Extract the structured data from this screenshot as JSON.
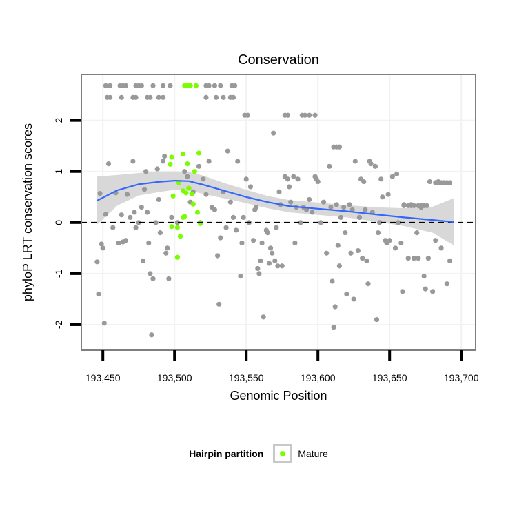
{
  "chart_data": {
    "type": "scatter",
    "title": "Conservation",
    "xlabel": "Genomic Position",
    "ylabel": "phyloP LRT conservation scores",
    "xlim": [
      193435,
      193710
    ],
    "ylim": [
      -2.5,
      2.9
    ],
    "xticks": [
      193450,
      193500,
      193550,
      193600,
      193650,
      193700
    ],
    "xtick_labels": [
      "193,450",
      "193,500",
      "193,550",
      "193,600",
      "193,650",
      "193,700"
    ],
    "yticks": [
      -2,
      -1,
      0,
      1,
      2
    ],
    "ytick_labels": [
      "-2",
      "-1",
      "0",
      "1",
      "2"
    ],
    "reference_line": {
      "y": 0,
      "style": "dashed"
    },
    "grid": true,
    "legend": {
      "position": "bottom",
      "title": "Hairpin partition",
      "entries": [
        {
          "name": "Mature",
          "color": "#7cfc00"
        }
      ]
    },
    "colors": {
      "other": "#999999",
      "mature": "#7cfc00",
      "smooth": "#3366ff",
      "band": "#d4d4d4",
      "panel_border": "#7f7f7f",
      "grid": "#f2f2f2"
    },
    "smooth": {
      "x": [
        193446,
        193460,
        193475,
        193490,
        193500,
        193510,
        193520,
        193535,
        193550,
        193565,
        193580,
        193600,
        193620,
        193640,
        193660,
        193680,
        193695
      ],
      "y": [
        0.43,
        0.63,
        0.75,
        0.8,
        0.82,
        0.81,
        0.74,
        0.62,
        0.5,
        0.4,
        0.32,
        0.27,
        0.22,
        0.16,
        0.1,
        0.05,
        0.01
      ],
      "lower": [
        -0.04,
        0.33,
        0.53,
        0.6,
        0.64,
        0.63,
        0.56,
        0.47,
        0.38,
        0.28,
        0.2,
        0.15,
        0.1,
        0.02,
        -0.07,
        -0.2,
        -0.45
      ],
      "upper": [
        0.9,
        0.93,
        0.97,
        1.0,
        1.0,
        0.99,
        0.92,
        0.77,
        0.64,
        0.52,
        0.44,
        0.39,
        0.34,
        0.3,
        0.28,
        0.31,
        0.48
      ]
    },
    "series": [
      {
        "name": "",
        "points": [
          [
            193446,
            -0.77
          ],
          [
            193447,
            -1.4
          ],
          [
            193448,
            0.57
          ],
          [
            193449,
            -0.42
          ],
          [
            193450,
            -0.5
          ],
          [
            193451,
            -1.97
          ],
          [
            193452,
            0.16
          ],
          [
            193454,
            1.15
          ],
          [
            193457,
            -0.1
          ],
          [
            193459,
            0.58
          ],
          [
            193461,
            -0.4
          ],
          [
            193463,
            0.15
          ],
          [
            193464,
            -0.38
          ],
          [
            193466,
            -0.35
          ],
          [
            193467,
            0.55
          ],
          [
            193469,
            0.1
          ],
          [
            193471,
            1.2
          ],
          [
            193472,
            0.2
          ],
          [
            193473,
            -0.1
          ],
          [
            193475,
            0.0
          ],
          [
            193477,
            0.3
          ],
          [
            193478,
            -0.75
          ],
          [
            193479,
            0.65
          ],
          [
            193480,
            1.0
          ],
          [
            193481,
            0.2
          ],
          [
            193482,
            -0.4
          ],
          [
            193483,
            -1.0
          ],
          [
            193484,
            -2.2
          ],
          [
            193485,
            -1.1
          ],
          [
            193487,
            0.0
          ],
          [
            193488,
            1.05
          ],
          [
            193489,
            0.45
          ],
          [
            193490,
            -0.2
          ],
          [
            193492,
            1.2
          ],
          [
            193493,
            1.3
          ],
          [
            193494,
            -0.6
          ],
          [
            193495,
            -0.5
          ],
          [
            193496,
            -1.1
          ],
          [
            193498,
            0.1
          ],
          [
            193502,
            0.0
          ],
          [
            193507,
            1.0
          ],
          [
            193509,
            0.9
          ],
          [
            193511,
            0.4
          ],
          [
            193513,
            0.6
          ],
          [
            193517,
            1.1
          ],
          [
            193518,
            0.0
          ],
          [
            193520,
            0.85
          ],
          [
            193522,
            0.55
          ],
          [
            193524,
            1.2
          ],
          [
            193526,
            0.3
          ],
          [
            193528,
            0.25
          ],
          [
            193530,
            -0.65
          ],
          [
            193531,
            -1.6
          ],
          [
            193532,
            -0.3
          ],
          [
            193534,
            0.6
          ],
          [
            193536,
            -0.1
          ],
          [
            193537,
            1.4
          ],
          [
            193539,
            0.4
          ],
          [
            193541,
            0.1
          ],
          [
            193543,
            -0.15
          ],
          [
            193544,
            1.2
          ],
          [
            193546,
            -1.05
          ],
          [
            193547,
            -0.4
          ],
          [
            193548,
            0.1
          ],
          [
            193550,
            0.85
          ],
          [
            193552,
            0.0
          ],
          [
            193553,
            0.7
          ],
          [
            193555,
            -0.35
          ],
          [
            193556,
            0.25
          ],
          [
            193557,
            0.3
          ],
          [
            193558,
            -0.9
          ],
          [
            193559,
            -1.0
          ],
          [
            193560,
            -0.75
          ],
          [
            193561,
            -0.4
          ],
          [
            193562,
            -1.85
          ],
          [
            193564,
            -0.15
          ],
          [
            193565,
            -0.2
          ],
          [
            193566,
            -0.8
          ],
          [
            193567,
            -0.5
          ],
          [
            193568,
            -0.6
          ],
          [
            193569,
            1.75
          ],
          [
            193570,
            -0.75
          ],
          [
            193571,
            -0.1
          ],
          [
            193572,
            -0.85
          ],
          [
            193573,
            0.6
          ],
          [
            193574,
            0.35
          ],
          [
            193575,
            -0.85
          ],
          [
            193577,
            0.9
          ],
          [
            193579,
            0.85
          ],
          [
            193580,
            0.7
          ],
          [
            193581,
            0.4
          ],
          [
            193583,
            0.9
          ],
          [
            193584,
            -0.4
          ],
          [
            193585,
            0.3
          ],
          [
            193586,
            0.85
          ],
          [
            193588,
            0.0
          ],
          [
            193590,
            0.3
          ],
          [
            193592,
            0.25
          ],
          [
            193594,
            0.45
          ],
          [
            193596,
            0.2
          ],
          [
            193598,
            0.9
          ],
          [
            193599,
            0.85
          ],
          [
            193600,
            0.8
          ],
          [
            193602,
            0.0
          ],
          [
            193604,
            0.4
          ],
          [
            193606,
            -0.6
          ],
          [
            193608,
            1.1
          ],
          [
            193609,
            0.3
          ],
          [
            193610,
            -1.15
          ],
          [
            193611,
            -2.05
          ],
          [
            193612,
            -1.65
          ],
          [
            193613,
            0.35
          ],
          [
            193614,
            -0.45
          ],
          [
            193615,
            -0.85
          ],
          [
            193616,
            0.1
          ],
          [
            193618,
            0.3
          ],
          [
            193619,
            -0.2
          ],
          [
            193620,
            -1.4
          ],
          [
            193622,
            0.35
          ],
          [
            193623,
            -0.6
          ],
          [
            193624,
            0.25
          ],
          [
            193625,
            -1.5
          ],
          [
            193626,
            1.2
          ],
          [
            193628,
            -0.55
          ],
          [
            193629,
            0.1
          ],
          [
            193630,
            0.85
          ],
          [
            193631,
            -0.7
          ],
          [
            193632,
            0.8
          ],
          [
            193633,
            0.25
          ],
          [
            193634,
            -0.75
          ],
          [
            193635,
            -1.2
          ],
          [
            193636,
            1.2
          ],
          [
            193637,
            1.15
          ],
          [
            193638,
            0.2
          ],
          [
            193640,
            1.1
          ],
          [
            193641,
            -1.9
          ],
          [
            193642,
            -0.2
          ],
          [
            193643,
            0.0
          ],
          [
            193644,
            0.85
          ],
          [
            193645,
            0.5
          ],
          [
            193647,
            -0.35
          ],
          [
            193648,
            -0.4
          ],
          [
            193649,
            0.55
          ],
          [
            193650,
            -0.35
          ],
          [
            193652,
            0.9
          ],
          [
            193654,
            -0.5
          ],
          [
            193655,
            0.95
          ],
          [
            193656,
            0.0
          ],
          [
            193658,
            -0.4
          ],
          [
            193659,
            -1.35
          ],
          [
            193660,
            0.35
          ],
          [
            193663,
            -0.7
          ],
          [
            193665,
            0.35
          ],
          [
            193667,
            -0.7
          ],
          [
            193669,
            -0.2
          ],
          [
            193670,
            -0.7
          ],
          [
            193672,
            0.3
          ],
          [
            193674,
            -1.05
          ],
          [
            193675,
            -1.3
          ],
          [
            193677,
            -0.7
          ],
          [
            193678,
            0.8
          ],
          [
            193680,
            -1.35
          ],
          [
            193682,
            -0.35
          ],
          [
            193684,
            0.8
          ],
          [
            193686,
            -0.5
          ],
          [
            193690,
            -1.2
          ],
          [
            193692,
            -0.75
          ]
        ],
        "rows": [
          {
            "y": 2.68,
            "x": [
              193452,
              193455,
              193462,
              193464,
              193466,
              193473,
              193475,
              193477,
              193485,
              193492,
              193497,
              193511,
              193522,
              193524,
              193528,
              193532,
              193540,
              193542
            ]
          },
          {
            "y": 2.45,
            "x": [
              193453,
              193455,
              193463,
              193471,
              193473,
              193481,
              193483,
              193489,
              193492,
              193522,
              193529,
              193534,
              193539,
              193541
            ]
          },
          {
            "y": 2.1,
            "x": [
              193549,
              193551,
              193577,
              193579,
              193589,
              193591,
              193594,
              193598
            ]
          },
          {
            "y": 1.48,
            "x": [
              193611,
              193613,
              193615
            ]
          },
          {
            "y": 0.78,
            "x": [
              193682,
              193684,
              193686,
              193688,
              193690,
              193692
            ]
          },
          {
            "y": 0.33,
            "x": [
              193660,
              193663,
              193665,
              193667,
              193670,
              193672,
              193674,
              193676
            ]
          }
        ]
      },
      {
        "name": "Mature",
        "points": [
          [
            193498,
            1.28
          ],
          [
            193497,
            1.14
          ],
          [
            193506,
            1.34
          ],
          [
            193509,
            1.15
          ],
          [
            193503,
            0.78
          ],
          [
            193506,
            0.62
          ],
          [
            193508,
            0.58
          ],
          [
            193510,
            0.67
          ],
          [
            193512,
            0.56
          ],
          [
            193514,
            1.0
          ],
          [
            193517,
            1.36
          ],
          [
            193499,
            0.52
          ],
          [
            193513,
            0.36
          ],
          [
            193516,
            0.2
          ],
          [
            193518,
            -0.02
          ],
          [
            193498,
            -0.08
          ],
          [
            193502,
            -0.1
          ],
          [
            193504,
            -0.27
          ],
          [
            193506,
            0.1
          ],
          [
            193507,
            0.12
          ],
          [
            193502,
            -0.68
          ]
        ],
        "rows": [
          {
            "y": 2.68,
            "x": [
              193507,
              193509,
              193511,
              193515
            ]
          }
        ]
      }
    ]
  }
}
